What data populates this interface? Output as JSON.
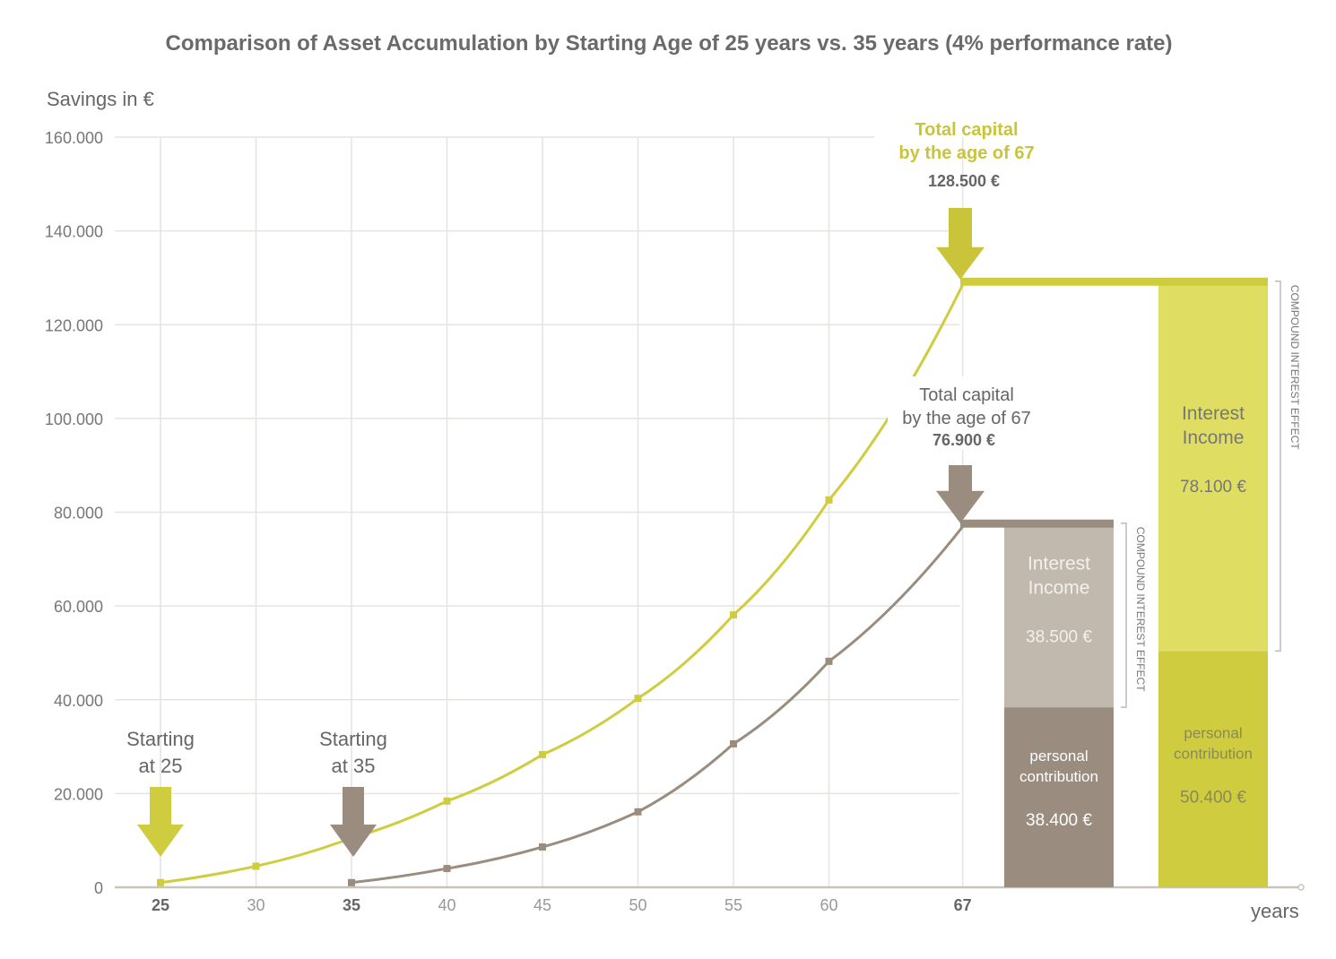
{
  "chart_data": {
    "type": "line",
    "title": "Comparison of Asset Accumulation by Starting Age of 25 years vs. 35 years (4% performance rate)",
    "ylabel": "Savings in €",
    "xlabel": "years",
    "ylim": [
      0,
      160000
    ],
    "y_ticks": [
      0,
      20000,
      40000,
      60000,
      80000,
      100000,
      120000,
      140000,
      160000
    ],
    "y_tick_labels": [
      "0",
      "20.000",
      "40.000",
      "60.000",
      "80.000",
      "100.000",
      "120.000",
      "140.000",
      "160.000"
    ],
    "x_ticks": [
      25,
      30,
      35,
      40,
      45,
      50,
      55,
      60,
      67
    ],
    "x_tick_labels": [
      "25",
      "30",
      "35",
      "40",
      "45",
      "50",
      "55",
      "60",
      "67"
    ],
    "x_bold_ticks": [
      "25",
      "35",
      "67"
    ],
    "grid": true,
    "colors": {
      "start25": "#cfcd3f",
      "start35": "#9a8d7f",
      "interest25": "#e0de62",
      "interest35": "#c2b9ae",
      "axis": "#c9c4bd"
    },
    "series": [
      {
        "name": "Starting at 25",
        "x": [
          25,
          30,
          35,
          40,
          45,
          50,
          55,
          60,
          67
        ],
        "values": [
          1000,
          4500,
          10500,
          18400,
          28300,
          40300,
          58100,
          82600,
          128500
        ]
      },
      {
        "name": "Starting at 35",
        "x": [
          35,
          40,
          45,
          50,
          55,
          60,
          67
        ],
        "values": [
          1000,
          4000,
          8600,
          16100,
          30600,
          48200,
          76900
        ]
      }
    ],
    "start_annotations": [
      {
        "label_line1": "Starting",
        "label_line2": "at 25",
        "age": 25
      },
      {
        "label_line1": "Starting",
        "label_line2": "at 35",
        "age": 35
      }
    ],
    "total_annotations": [
      {
        "line1": "Total capital",
        "line2": "by the age of 67",
        "value": "128.500 €",
        "amount": 128500
      },
      {
        "line1": "Total capital",
        "line2": "by the age of 67",
        "value": "76.900 €",
        "amount": 76900
      }
    ],
    "stacked_bars": [
      {
        "name": "Starting at 35",
        "personal_label1": "personal",
        "personal_label2": "contribution",
        "personal_value": "38.400 €",
        "personal": 38400,
        "interest_label1": "Interest",
        "interest_label2": "Income",
        "interest_value": "38.500 €",
        "interest": 38500,
        "bracket_label": "COMPOUND INTEREST EFFECT"
      },
      {
        "name": "Starting at 25",
        "personal_label1": "personal",
        "personal_label2": "contribution",
        "personal_value": "50.400 €",
        "personal": 50400,
        "interest_label1": "Interest",
        "interest_label2": "Income",
        "interest_value": "78.100 €",
        "interest": 78100,
        "bracket_label": "COMPOUND INTEREST EFFECT"
      }
    ]
  }
}
